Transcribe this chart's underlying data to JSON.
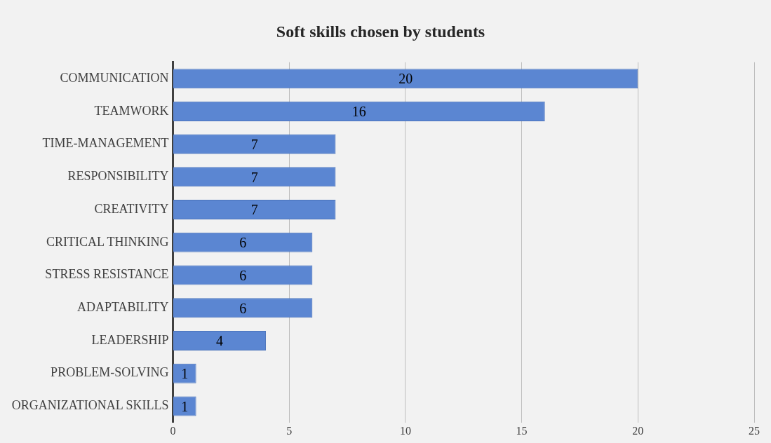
{
  "chart_data": {
    "type": "bar",
    "orientation": "horizontal",
    "title": "Soft skills chosen by students",
    "categories": [
      "COMMUNICATION",
      "TEAMWORK",
      "TIME-MANAGEMENT",
      "RESPONSIBILITY",
      "CREATIVITY",
      "CRITICAL THINKING",
      "STRESS RESISTANCE",
      "ADAPTABILITY",
      "LEADERSHIP",
      "PROBLEM-SOLVING",
      "ORGANIZATIONAL SKILLS"
    ],
    "values": [
      20,
      16,
      7,
      7,
      7,
      6,
      6,
      6,
      4,
      1,
      1
    ],
    "color": "#5b86d2",
    "xlim": [
      0,
      25
    ],
    "xticks": [
      0,
      5,
      10,
      15,
      20,
      25
    ],
    "grid": "x",
    "data_labels": true,
    "legend": false
  }
}
